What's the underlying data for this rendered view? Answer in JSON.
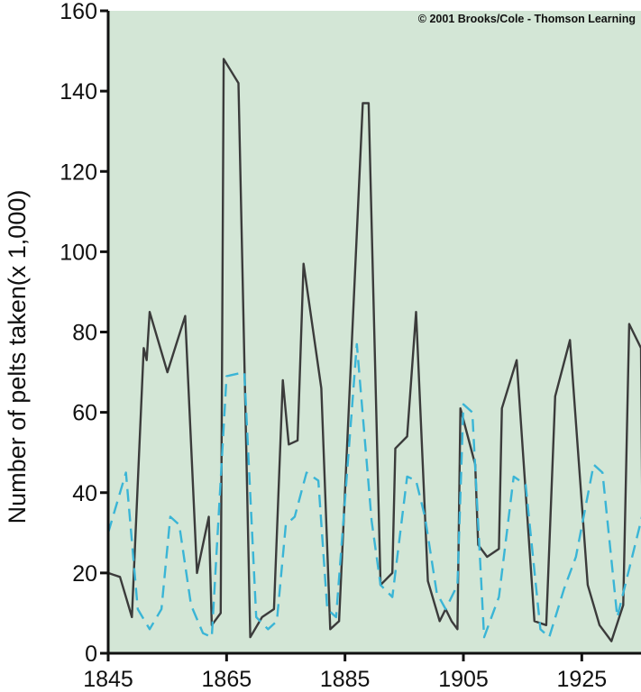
{
  "chart_data": {
    "type": "line",
    "title": "",
    "xlabel": "",
    "ylabel": "Number of pelts taken(x 1,000)",
    "copyright": "© 2001 Brooks/Cole - Thomson Learning",
    "xlim": [
      1845,
      1935
    ],
    "ylim": [
      0,
      160
    ],
    "x_ticks": [
      1845,
      1865,
      1885,
      1905,
      1925
    ],
    "y_ticks": [
      0,
      20,
      40,
      60,
      80,
      100,
      120,
      140,
      160
    ],
    "grid": false,
    "legend": "none",
    "background_color": "#d3e6d6",
    "series": [
      {
        "style": "solid",
        "color": "#3b3b3b",
        "points": [
          [
            1845,
            20
          ],
          [
            1847,
            19
          ],
          [
            1849,
            9
          ],
          [
            1851,
            76
          ],
          [
            1851.5,
            73
          ],
          [
            1852,
            85
          ],
          [
            1855,
            70
          ],
          [
            1858,
            84
          ],
          [
            1860,
            20
          ],
          [
            1862,
            34
          ],
          [
            1862.5,
            7
          ],
          [
            1864,
            10
          ],
          [
            1864.5,
            148
          ],
          [
            1867,
            142
          ],
          [
            1869,
            4
          ],
          [
            1871,
            9
          ],
          [
            1873,
            11
          ],
          [
            1874.5,
            68
          ],
          [
            1875.5,
            52
          ],
          [
            1877,
            53
          ],
          [
            1878,
            97
          ],
          [
            1881,
            66
          ],
          [
            1882.5,
            6
          ],
          [
            1884,
            8
          ],
          [
            1888,
            137
          ],
          [
            1889,
            137
          ],
          [
            1891,
            17
          ],
          [
            1893,
            20
          ],
          [
            1893.5,
            51
          ],
          [
            1895.5,
            54
          ],
          [
            1897,
            85
          ],
          [
            1899,
            18
          ],
          [
            1901,
            8
          ],
          [
            1902,
            11
          ],
          [
            1903,
            8
          ],
          [
            1904,
            6
          ],
          [
            1904.5,
            61
          ],
          [
            1907,
            47
          ],
          [
            1907.5,
            27
          ],
          [
            1909,
            24
          ],
          [
            1911,
            26
          ],
          [
            1911.5,
            61
          ],
          [
            1914,
            73
          ],
          [
            1917,
            8
          ],
          [
            1919,
            7
          ],
          [
            1920.5,
            64
          ],
          [
            1923,
            78
          ],
          [
            1926,
            17
          ],
          [
            1928,
            7
          ],
          [
            1930,
            3
          ],
          [
            1932,
            12
          ],
          [
            1933,
            82
          ],
          [
            1935,
            76
          ],
          [
            1935.3,
            19
          ]
        ]
      },
      {
        "style": "dashed",
        "color": "#3ab5d6",
        "points": [
          [
            1845,
            30
          ],
          [
            1848,
            45
          ],
          [
            1850,
            11
          ],
          [
            1852,
            6
          ],
          [
            1854,
            11
          ],
          [
            1855.5,
            34
          ],
          [
            1857,
            32
          ],
          [
            1859,
            12
          ],
          [
            1861,
            5
          ],
          [
            1862.5,
            4
          ],
          [
            1865,
            69
          ],
          [
            1868,
            70
          ],
          [
            1870,
            9
          ],
          [
            1872,
            6
          ],
          [
            1873.5,
            8
          ],
          [
            1875,
            32
          ],
          [
            1876.5,
            34
          ],
          [
            1878.5,
            45
          ],
          [
            1880.5,
            43
          ],
          [
            1882,
            11
          ],
          [
            1883.5,
            9
          ],
          [
            1887,
            77
          ],
          [
            1889.5,
            33
          ],
          [
            1891,
            17
          ],
          [
            1893,
            14
          ],
          [
            1895.5,
            44
          ],
          [
            1897,
            43
          ],
          [
            1898.5,
            34
          ],
          [
            1900.5,
            15
          ],
          [
            1902,
            11
          ],
          [
            1904,
            17
          ],
          [
            1905,
            62
          ],
          [
            1906.5,
            60
          ],
          [
            1908.5,
            4
          ],
          [
            1911,
            14
          ],
          [
            1913.5,
            44
          ],
          [
            1915.5,
            42
          ],
          [
            1918,
            6
          ],
          [
            1919.5,
            4
          ],
          [
            1922,
            16
          ],
          [
            1924,
            24
          ],
          [
            1927,
            47
          ],
          [
            1928.5,
            45
          ],
          [
            1931,
            9
          ],
          [
            1933,
            21
          ],
          [
            1936,
            39
          ]
        ]
      }
    ]
  }
}
